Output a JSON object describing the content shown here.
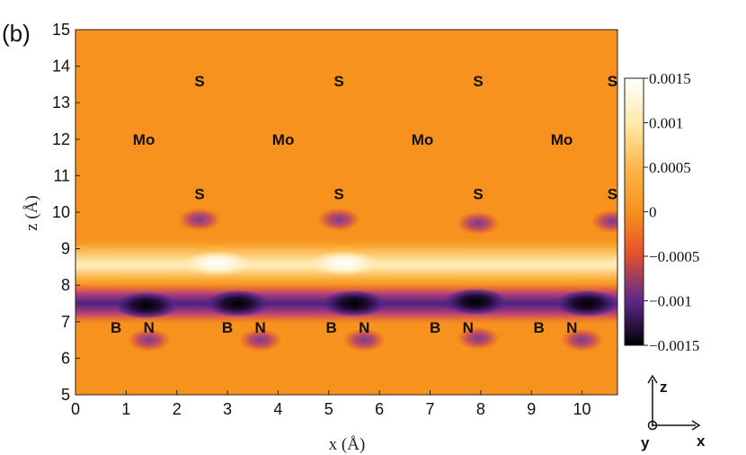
{
  "panel_label": "(b)",
  "chart_data": {
    "type": "heatmap",
    "title": "",
    "xlabel": "x (Å)",
    "ylabel": "z (Å)",
    "xlim": [
      0,
      10.7
    ],
    "ylim": [
      5,
      15
    ],
    "x_ticks": [
      "0",
      "1",
      "2",
      "3",
      "4",
      "5",
      "6",
      "7",
      "8",
      "9",
      "10"
    ],
    "y_ticks": [
      "5",
      "6",
      "7",
      "8",
      "9",
      "10",
      "11",
      "12",
      "13",
      "14",
      "15"
    ],
    "colorbar": {
      "range": [
        -0.0015,
        0.0015
      ],
      "ticks": [
        "0.0015",
        "0.001",
        "0.0005",
        "0",
        "−0.0005",
        "−0.001",
        "−0.0015"
      ],
      "colors": {
        "max": "#ffffff",
        "high": "#ffe7a3",
        "mid_high": "#fbb040",
        "zero": "#f7921e",
        "mid_low": "#e8542a",
        "low": "#5e2a8a",
        "min": "#000000"
      }
    },
    "atom_labels": [
      {
        "text": "S",
        "x": 2.45,
        "z": 13.6
      },
      {
        "text": "S",
        "x": 5.2,
        "z": 13.6
      },
      {
        "text": "S",
        "x": 7.95,
        "z": 13.6
      },
      {
        "text": "S",
        "x": 10.6,
        "z": 13.6
      },
      {
        "text": "Mo",
        "x": 1.35,
        "z": 12.0
      },
      {
        "text": "Mo",
        "x": 4.1,
        "z": 12.0
      },
      {
        "text": "Mo",
        "x": 6.85,
        "z": 12.0
      },
      {
        "text": "Mo",
        "x": 9.6,
        "z": 12.0
      },
      {
        "text": "S",
        "x": 2.45,
        "z": 10.5
      },
      {
        "text": "S",
        "x": 5.2,
        "z": 10.5
      },
      {
        "text": "S",
        "x": 7.95,
        "z": 10.5
      },
      {
        "text": "S",
        "x": 10.6,
        "z": 10.5
      },
      {
        "text": "B",
        "x": 0.8,
        "z": 6.85
      },
      {
        "text": "N",
        "x": 1.45,
        "z": 6.85
      },
      {
        "text": "B",
        "x": 3.0,
        "z": 6.85
      },
      {
        "text": "N",
        "x": 3.65,
        "z": 6.85
      },
      {
        "text": "B",
        "x": 5.05,
        "z": 6.85
      },
      {
        "text": "N",
        "x": 5.7,
        "z": 6.85
      },
      {
        "text": "B",
        "x": 7.1,
        "z": 6.85
      },
      {
        "text": "N",
        "x": 7.75,
        "z": 6.85
      },
      {
        "text": "B",
        "x": 9.15,
        "z": 6.85
      },
      {
        "text": "N",
        "x": 9.8,
        "z": 6.85
      }
    ],
    "features": [
      {
        "kind": "band",
        "z_center": 8.6,
        "value": 0.0012
      },
      {
        "kind": "band",
        "z_center": 7.5,
        "value": -0.0012
      },
      {
        "kind": "spot",
        "x": 2.8,
        "z": 8.6,
        "value": 0.0015
      },
      {
        "kind": "spot",
        "x": 5.3,
        "z": 8.6,
        "value": 0.0015
      },
      {
        "kind": "spot",
        "x": 1.4,
        "z": 7.45,
        "value": -0.0015
      },
      {
        "kind": "spot",
        "x": 3.2,
        "z": 7.5,
        "value": -0.0015
      },
      {
        "kind": "spot",
        "x": 5.5,
        "z": 7.5,
        "value": -0.0015
      },
      {
        "kind": "spot",
        "x": 7.9,
        "z": 7.55,
        "value": -0.0015
      },
      {
        "kind": "spot",
        "x": 10.1,
        "z": 7.5,
        "value": -0.0015
      },
      {
        "kind": "spot",
        "x": 1.45,
        "z": 6.5,
        "value": -0.0008
      },
      {
        "kind": "spot",
        "x": 3.65,
        "z": 6.5,
        "value": -0.0008
      },
      {
        "kind": "spot",
        "x": 5.7,
        "z": 6.5,
        "value": -0.0008
      },
      {
        "kind": "spot",
        "x": 7.95,
        "z": 6.55,
        "value": -0.0008
      },
      {
        "kind": "spot",
        "x": 10.0,
        "z": 6.5,
        "value": -0.0008
      },
      {
        "kind": "spot",
        "x": 2.45,
        "z": 9.8,
        "value": -0.0006
      },
      {
        "kind": "spot",
        "x": 5.2,
        "z": 9.8,
        "value": -0.0006
      },
      {
        "kind": "spot",
        "x": 7.95,
        "z": 9.7,
        "value": -0.0007
      },
      {
        "kind": "spot",
        "x": 10.6,
        "z": 9.75,
        "value": -0.0006
      }
    ]
  },
  "compass": {
    "z": "z",
    "x": "x",
    "y": "y"
  }
}
